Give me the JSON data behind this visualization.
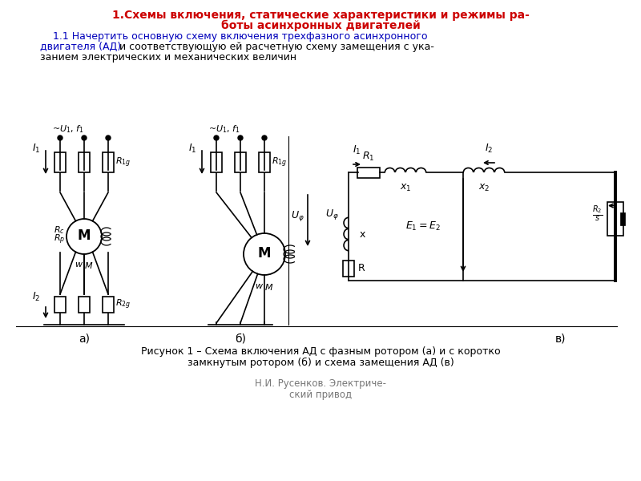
{
  "title1": "1.Схемы включения, статические характеристики и режимы ра-",
  "title2": "боты асинхронных двигателей",
  "sub_blue1": "    1.1 Начертить основную схему включения трехфазного асинхронного",
  "sub_blue2": "двигателя (АД)",
  "sub_black2": " и соответствующую ей расчетную схему замещения с ука-",
  "sub_black3": "занием электрических и механических величин",
  "label_a": "а)",
  "label_b": "б)",
  "label_v": "в)",
  "caption1": "Рисунок 1 – Схема включения АД с фазным ротором (а) и с коротко",
  "caption2": "замкнутым ротором (б) и схема замещения АД (в)",
  "watermark1": "Н.И. Русенков. Электриче-",
  "watermark2": "ский привод",
  "bg_color": "#ffffff",
  "lc": "#000000",
  "red": "#cc0000",
  "blue": "#0000bb"
}
